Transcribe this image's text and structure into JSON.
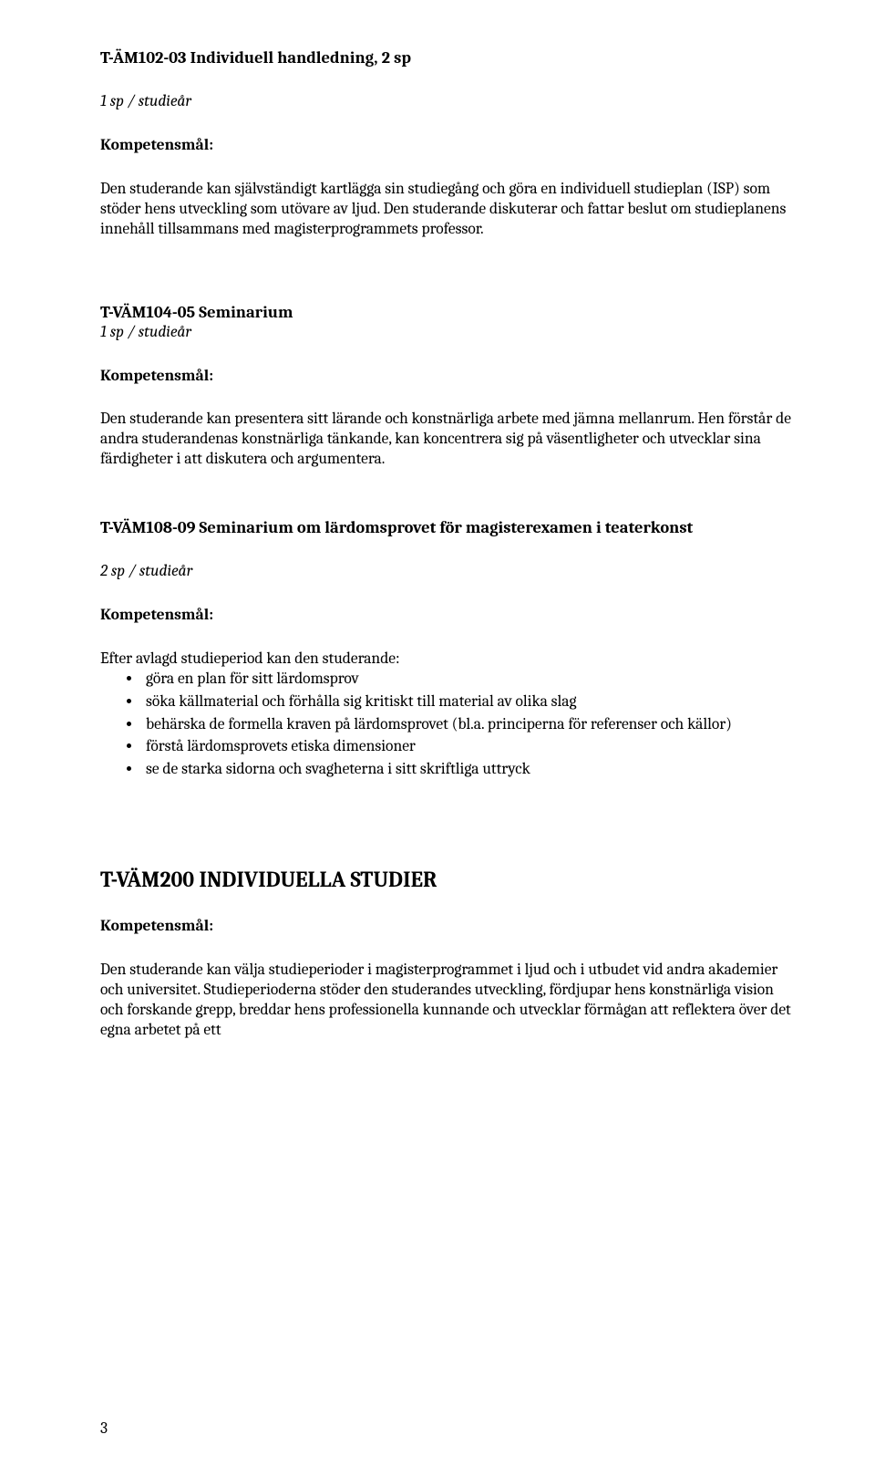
{
  "c1": {
    "title": "T-ÄM102-03 Individuell handledning, 2 sp",
    "credits": "1 sp / studieår",
    "label": "Kompetensmål:",
    "body": "Den studerande kan självständigt kartlägga sin studiegång och göra en individuell studieplan (ISP) som stöder hens utveckling som utövare av ljud. Den studerande diskuterar och fattar beslut om studieplanens innehåll tillsammans med magisterprogrammets professor."
  },
  "c2": {
    "title": "T-VÄM104-05 Seminarium",
    "credits": "1 sp / studieår",
    "label": "Kompetensmål:",
    "body": "Den studerande kan presentera sitt lärande och konstnärliga arbete med jämna mellanrum. Hen förstår de andra studerandenas konstnärliga tänkande, kan koncentrera sig på väsentligheter och utvecklar sina färdigheter i att diskutera och argumentera."
  },
  "c3": {
    "title": "T-VÄM108-09 Seminarium om lärdomsprovet för magisterexamen i teaterkonst",
    "credits": "2 sp / studieår",
    "label": "Kompetensmål:",
    "lead": "Efter avlagd studieperiod kan den studerande:",
    "bullets": [
      "göra en plan för sitt lärdomsprov",
      "söka källmaterial och förhålla sig kritiskt till material av olika slag",
      "behärska de formella kraven på lärdomsprovet (bl.a. principerna för referenser och källor)",
      "förstå lärdomsprovets etiska dimensioner",
      "se de starka sidorna och svagheterna i sitt skriftliga uttryck"
    ]
  },
  "section": {
    "title": "T-VÄM200 INDIVIDUELLA STUDIER",
    "label": "Kompetensmål:",
    "body": "Den studerande kan välja studieperioder i magisterprogrammet i ljud och i utbudet vid andra akademier och universitet. Studieperioderna stöder den studerandes utveckling, fördjupar hens konstnärliga vision och forskande grepp, breddar hens professionella kunnande och utvecklar förmågan att reflektera över det egna arbetet på ett"
  },
  "pageNumber": "3"
}
